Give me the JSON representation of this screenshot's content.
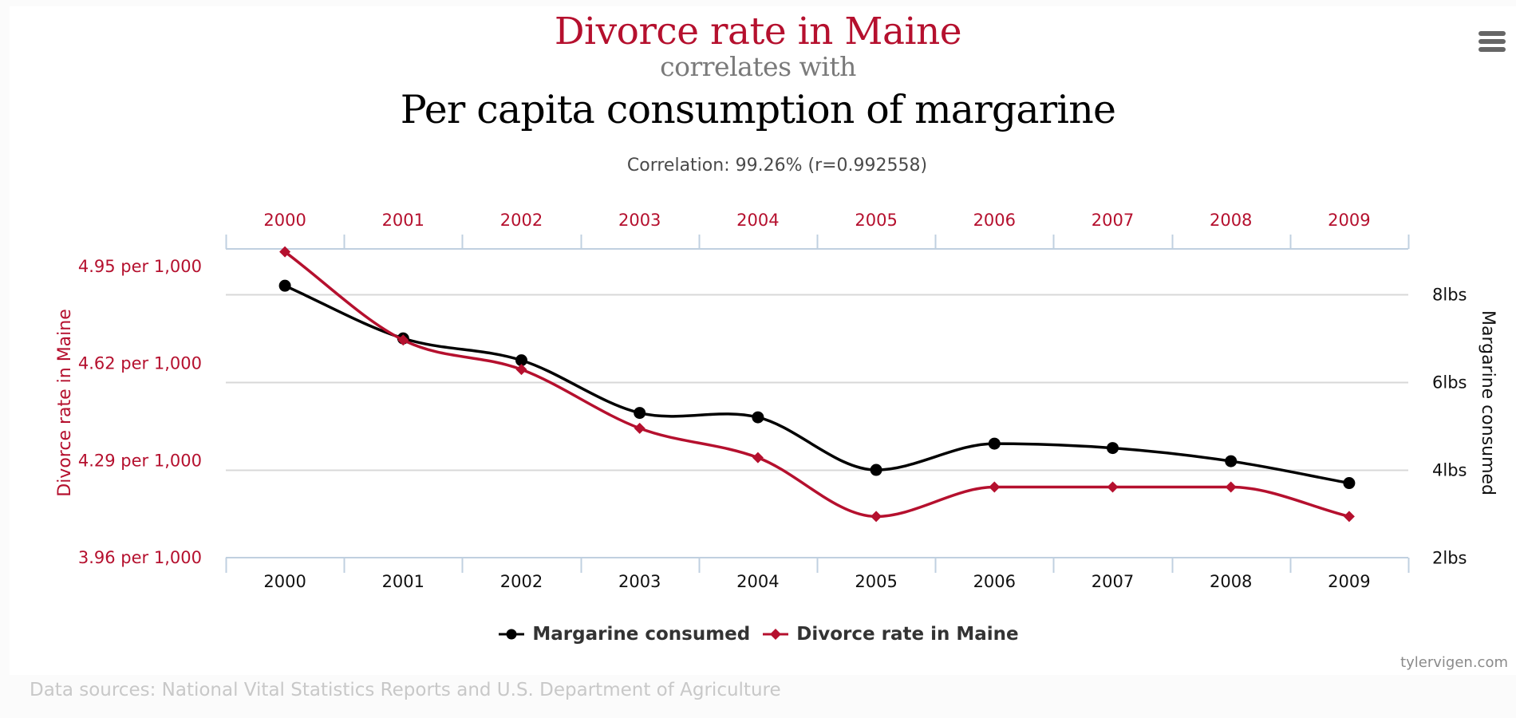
{
  "header": {
    "title": "Divorce rate in Maine",
    "connector": "correlates with",
    "second_title": "Per capita consumption of margarine",
    "correlation": "Correlation: 99.26% (r=0.992558)"
  },
  "menu": {
    "icon": "hamburger-menu-icon"
  },
  "colors": {
    "divorce": "#b5102e",
    "margarine": "#000000",
    "grid": "#d8d8d8",
    "axis": "#c0d0e0"
  },
  "chart_data": {
    "type": "line",
    "title": "Divorce rate in Maine correlates with Per capita consumption of margarine",
    "subtitle": "Correlation: 99.26% (r=0.992558)",
    "categories": [
      "2000",
      "2001",
      "2002",
      "2003",
      "2004",
      "2005",
      "2006",
      "2007",
      "2008",
      "2009"
    ],
    "x_axis_top": {
      "labels": [
        "2000",
        "2001",
        "2002",
        "2003",
        "2004",
        "2005",
        "2006",
        "2007",
        "2008",
        "2009"
      ]
    },
    "x_axis_bottom": {
      "labels": [
        "2000",
        "2001",
        "2002",
        "2003",
        "2004",
        "2005",
        "2006",
        "2007",
        "2008",
        "2009"
      ]
    },
    "y_axis_left": {
      "title": "Divorce rate in Maine",
      "ticks": [
        3.96,
        4.29,
        4.62,
        4.95
      ],
      "tick_labels": [
        "3.96 per 1,000",
        "4.29 per 1,000",
        "4.62 per 1,000",
        "4.95 per 1,000"
      ],
      "range": [
        3.96,
        5.01
      ]
    },
    "y_axis_right": {
      "title": "Margarine consumed",
      "ticks": [
        2,
        4,
        6,
        8
      ],
      "tick_labels": [
        "2lbs",
        "4lbs",
        "6lbs",
        "8lbs"
      ],
      "range": [
        2,
        9.04
      ]
    },
    "grid": true,
    "legend_position": "bottom-center",
    "series": [
      {
        "name": "Margarine consumed",
        "axis": "right",
        "marker": "circle",
        "color": "#000000",
        "values": [
          8.2,
          7.0,
          6.5,
          5.3,
          5.2,
          4.0,
          4.6,
          4.5,
          4.2,
          3.7
        ]
      },
      {
        "name": "Divorce rate in Maine",
        "axis": "left",
        "marker": "diamond",
        "color": "#b5102e",
        "values": [
          5.0,
          4.7,
          4.6,
          4.4,
          4.3,
          4.1,
          4.2,
          4.2,
          4.2,
          4.1
        ]
      }
    ]
  },
  "legend": {
    "items": [
      {
        "label": "Margarine consumed",
        "icon": "circle-marker-icon"
      },
      {
        "label": "Divorce rate in Maine",
        "icon": "diamond-marker-icon"
      }
    ]
  },
  "credit": "tylervigen.com",
  "footer": "Data sources: National Vital Statistics Reports and U.S. Department of Agriculture"
}
